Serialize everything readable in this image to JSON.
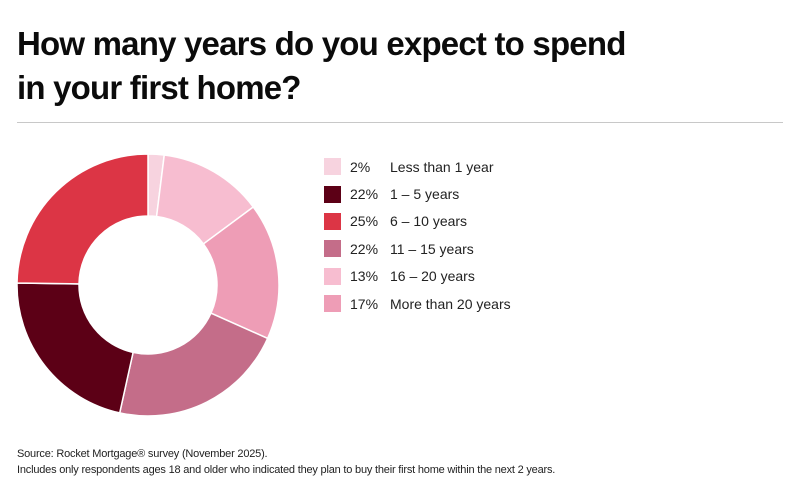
{
  "header": {
    "title_line1": "How many years do you expect to spend",
    "title_line2": "in your first home?"
  },
  "chart_data": {
    "type": "pie",
    "subtype": "donut",
    "title": "How many years do you expect to spend in your first home?",
    "categories": [
      "Less than 1 year",
      "1 – 5 years",
      "6 – 10 years",
      "11 – 15 years",
      "16 – 20 years",
      "More than 20 years"
    ],
    "values": [
      2,
      22,
      25,
      22,
      13,
      17
    ],
    "unit": "%",
    "colors": [
      "#f7d3df",
      "#5c0016",
      "#dc3545",
      "#c46d89",
      "#f7bdd0",
      "#ee9db6"
    ],
    "drawing_order_clockwise_from_top": [
      "Less than 1 year",
      "16 – 20 years",
      "More than 20 years",
      "11 – 15 years",
      "1 – 5 years",
      "6 – 10 years"
    ],
    "legend_position": "right"
  },
  "legend": {
    "items": [
      {
        "pct": "2%",
        "label": "Less than 1 year",
        "color": "#f7d3df"
      },
      {
        "pct": "22%",
        "label": "1 – 5 years",
        "color": "#5c0016"
      },
      {
        "pct": "25%",
        "label": "6 – 10 years",
        "color": "#dc3545"
      },
      {
        "pct": "22%",
        "label": "11 – 15 years",
        "color": "#c46d89"
      },
      {
        "pct": "13%",
        "label": "16 – 20 years",
        "color": "#f7bdd0"
      },
      {
        "pct": "17%",
        "label": "More than 20 years",
        "color": "#ee9db6"
      }
    ]
  },
  "footnote": {
    "line1": "Source: Rocket Mortgage® survey (November 2025).",
    "line2": "Includes only respondents ages 18 and older who indicated they plan to buy their first home within the next 2 years."
  }
}
